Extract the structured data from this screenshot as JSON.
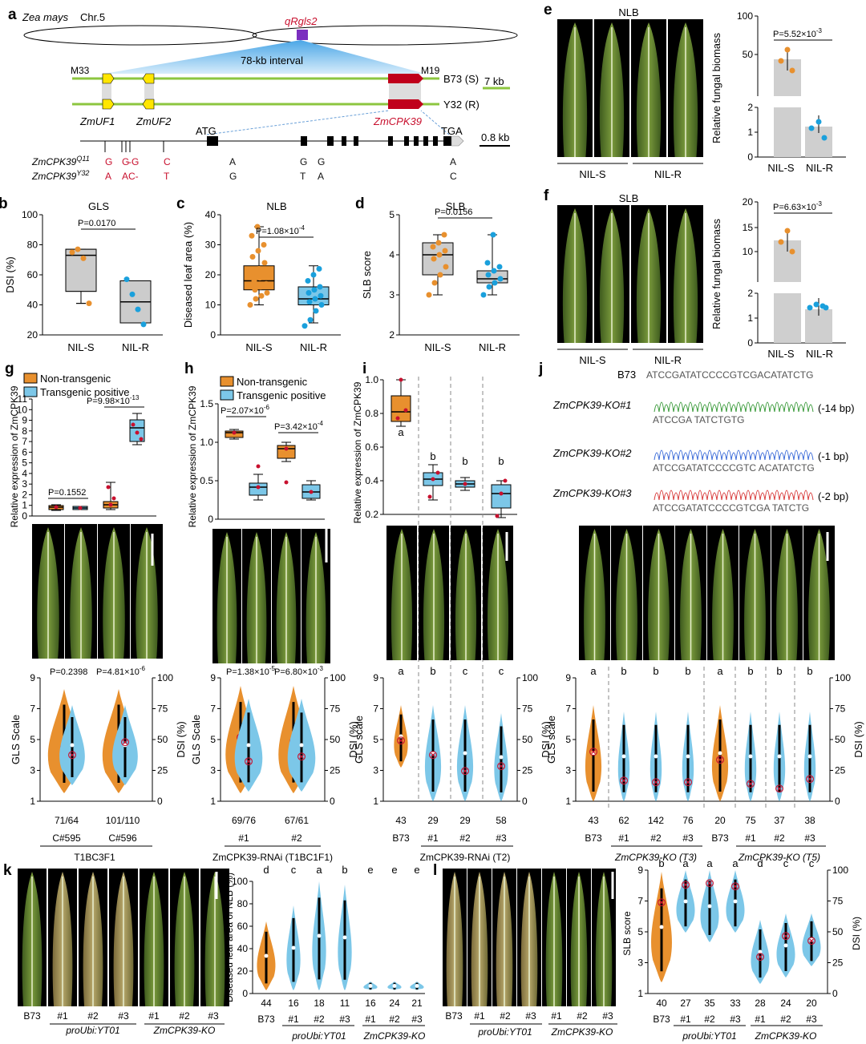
{
  "colors": {
    "orange": "#e8902e",
    "blue": "#7cc7e8",
    "dotBlue": "#1aa0dc",
    "red": "#c8102e",
    "green": "#8cc63f",
    "leaf": "#5f7f2e",
    "grey": "#cfcfcf"
  },
  "a": {
    "label": "a",
    "species": "Zea mays",
    "chr": "Chr.5",
    "qtl": "qRgls2",
    "interval": "78-kb interval",
    "m33": "M33",
    "m19": "M19",
    "b73": "B73 (S)",
    "y32": "Y32 (R)",
    "scale1": "7 kb",
    "scale2": "0.8 kb",
    "atg": "ATG",
    "tga": "TGA",
    "zmuf1": "ZmUF1",
    "zmuf2": "ZmUF2",
    "zmcpk39": "ZmCPK39",
    "row1": "ZmCPK39",
    "row1sup": "Q11",
    "row2": "ZmCPK39",
    "row2sup": "Y32",
    "snp_top": [
      "G",
      "G",
      "-G",
      "C",
      "A",
      "G",
      "G",
      "A"
    ],
    "snp_bot": [
      "A",
      "A",
      "C-",
      "T",
      "G",
      "T",
      "A",
      "C"
    ],
    "snp_top2": "G",
    "snp_bot2": "A"
  },
  "b": {
    "label": "b",
    "title": "GLS",
    "ylabel": "DSI (%)",
    "ticks": [
      "20",
      "40",
      "60",
      "80",
      "100"
    ],
    "x": [
      "NIL-S",
      "NIL-R"
    ],
    "p": "P=0.0170"
  },
  "c": {
    "label": "c",
    "title": "NLB",
    "ylabel": "Diseased leaf area (%)",
    "ticks": [
      "0",
      "10",
      "20",
      "30",
      "40"
    ],
    "x": [
      "NIL-S",
      "NIL-R"
    ],
    "p": "P=1.08×10",
    "pexp": "-4"
  },
  "d": {
    "label": "d",
    "title": "SLB",
    "ylabel": "SLB score",
    "ticks": [
      "2",
      "3",
      "4",
      "5"
    ],
    "x": [
      "NIL-S",
      "NIL-R"
    ],
    "p": "P=0.0156"
  },
  "e": {
    "label": "e",
    "title": "NLB",
    "groups": [
      "NIL-S",
      "NIL-R"
    ],
    "ylabel": "Relative fungal biomass",
    "ticks_low": [
      "0",
      "1",
      "2"
    ],
    "ticks_high": [
      "50",
      "100"
    ],
    "x": [
      "NIL-S",
      "NIL-R"
    ],
    "p": "P=5.52×10",
    "pexp": "-3"
  },
  "f": {
    "label": "f",
    "title": "SLB",
    "groups": [
      "NIL-S",
      "NIL-R"
    ],
    "ylabel": "Relative fungal biomass",
    "ticks_low": [
      "0",
      "1",
      "2"
    ],
    "ticks_high": [
      "10",
      "15",
      "20"
    ],
    "x": [
      "NIL-S",
      "NIL-R"
    ],
    "p": "P=6.63×10",
    "pexp": "-3"
  },
  "g": {
    "label": "g",
    "legend": [
      "Non-transgenic",
      "Transgenic positive"
    ],
    "ylabel": "Relative expression of ZmCPK39",
    "ticks": [
      "0",
      "1",
      "2",
      "3",
      "4",
      "5",
      "6",
      "7",
      "8",
      "9",
      "10",
      "11"
    ],
    "p1": "P=0.1552",
    "p2": "P=9.98×10",
    "p2exp": "-13",
    "vp1": "P=0.2398",
    "vp2": "P=4.81×10",
    "vp2exp": "-6",
    "vylabel": "GLS Scale",
    "vy2label": "DSI (%)",
    "vticks": [
      "1",
      "3",
      "5",
      "7",
      "9"
    ],
    "v2ticks": [
      "0",
      "25",
      "50",
      "75",
      "100"
    ],
    "n": [
      "71/64",
      "101/110"
    ],
    "x": [
      "C#595",
      "C#596"
    ],
    "pop": "T1BC3F1"
  },
  "h": {
    "label": "h",
    "legend": [
      "Non-transgenic",
      "Transgenic positive"
    ],
    "ylabel": "Relative expression of ZmCPK39",
    "ticks": [
      "0",
      "0.5",
      "1.0",
      "1.5"
    ],
    "p1": "P=2.07×10",
    "p1exp": "-6",
    "p2": "P=3.42×10",
    "p2exp": "-4",
    "vp1": "P=1.38×10",
    "vp1exp": "-5",
    "vp2": "P=6.80×10",
    "vp2exp": "-3",
    "vylabel": "GLS Scale",
    "vy2label": "DSI (%)",
    "vticks": [
      "1",
      "3",
      "5",
      "7",
      "9"
    ],
    "v2ticks": [
      "0",
      "25",
      "50",
      "75",
      "100"
    ],
    "n": [
      "69/76",
      "67/61"
    ],
    "x": [
      "#1",
      "#2"
    ],
    "pop": "ZmCPK39-RNAi (T1BC1F1)"
  },
  "i": {
    "label": "i",
    "ylabel": "Relative expression of ZmCPK39",
    "ticks": [
      "0.2",
      "0.4",
      "0.6",
      "0.8",
      "1.0"
    ],
    "letters": [
      "a",
      "b",
      "b",
      "b"
    ],
    "vletters": [
      "a",
      "b",
      "c",
      "c"
    ],
    "vylabel": "GLS scale",
    "vy2label": "DSI (%)",
    "vticks": [
      "1",
      "3",
      "5",
      "7",
      "9"
    ],
    "v2ticks": [
      "0",
      "25",
      "50",
      "75",
      "100"
    ],
    "n": [
      "43",
      "29",
      "29",
      "58"
    ],
    "x": [
      "B73",
      "#1",
      "#2",
      "#3"
    ],
    "pop": "ZmCPK39-RNAi (T2)"
  },
  "j": {
    "label": "j",
    "b73": "B73",
    "ref": "ATCCGATATCCCCGTCGACATATCTG",
    "ko": [
      {
        "name": "ZmCPK39-KO#1",
        "seq": "ATCCGA                TATCTGTG",
        "del": "(-14 bp)"
      },
      {
        "name": "ZmCPK39-KO#2",
        "seq": "ATCCGATATCCCCGTC ACATATCTG",
        "del": "(-1 bp)"
      },
      {
        "name": "ZmCPK39-KO#3",
        "seq": "ATCCGATATCCCCGTCGA  TATCTG",
        "del": "(-2 bp)"
      }
    ],
    "vletters": [
      "a",
      "b",
      "b",
      "b",
      "a",
      "b",
      "b",
      "b"
    ],
    "vylabel": "GLS scale",
    "vy2label": "DSI (%)",
    "vticks": [
      "1",
      "3",
      "5",
      "7",
      "9"
    ],
    "v2ticks": [
      "0",
      "25",
      "50",
      "75",
      "100"
    ],
    "n": [
      "43",
      "62",
      "142",
      "76",
      "20",
      "75",
      "37",
      "38"
    ],
    "x": [
      "B73",
      "#1",
      "#2",
      "#3",
      "B73",
      "#1",
      "#2",
      "#3"
    ],
    "pop1": "ZmCPK39-KO (T3)",
    "pop2": "ZmCPK39-KO (T5)"
  },
  "k": {
    "label": "k",
    "x": [
      "B73",
      "#1",
      "#2",
      "#3",
      "#1",
      "#2",
      "#3"
    ],
    "g1": "proUbi:YT01",
    "g2": "ZmCPK39-KO",
    "ylabel": "Diseased leaf area of NLB (%)",
    "ticks": [
      "0",
      "20",
      "40",
      "60",
      "80",
      "100"
    ],
    "letters": [
      "d",
      "c",
      "a",
      "b",
      "e",
      "e",
      "e"
    ],
    "n": [
      "44",
      "16",
      "18",
      "11",
      "16",
      "24",
      "21"
    ]
  },
  "l": {
    "label": "l",
    "x": [
      "B73",
      "#1",
      "#2",
      "#3",
      "#1",
      "#2",
      "#3"
    ],
    "g1": "proUbi:YT01",
    "g2": "ZmCPK39-KO",
    "ylabel": "SLB score",
    "y2label": "DSI (%)",
    "ticks": [
      "1",
      "3",
      "5",
      "7",
      "9"
    ],
    "ticks2": [
      "0",
      "25",
      "50",
      "75",
      "100"
    ],
    "letters": [
      "b",
      "a",
      "a",
      "a",
      "d",
      "c",
      "c"
    ],
    "n": [
      "40",
      "27",
      "35",
      "33",
      "28",
      "24",
      "20"
    ]
  }
}
